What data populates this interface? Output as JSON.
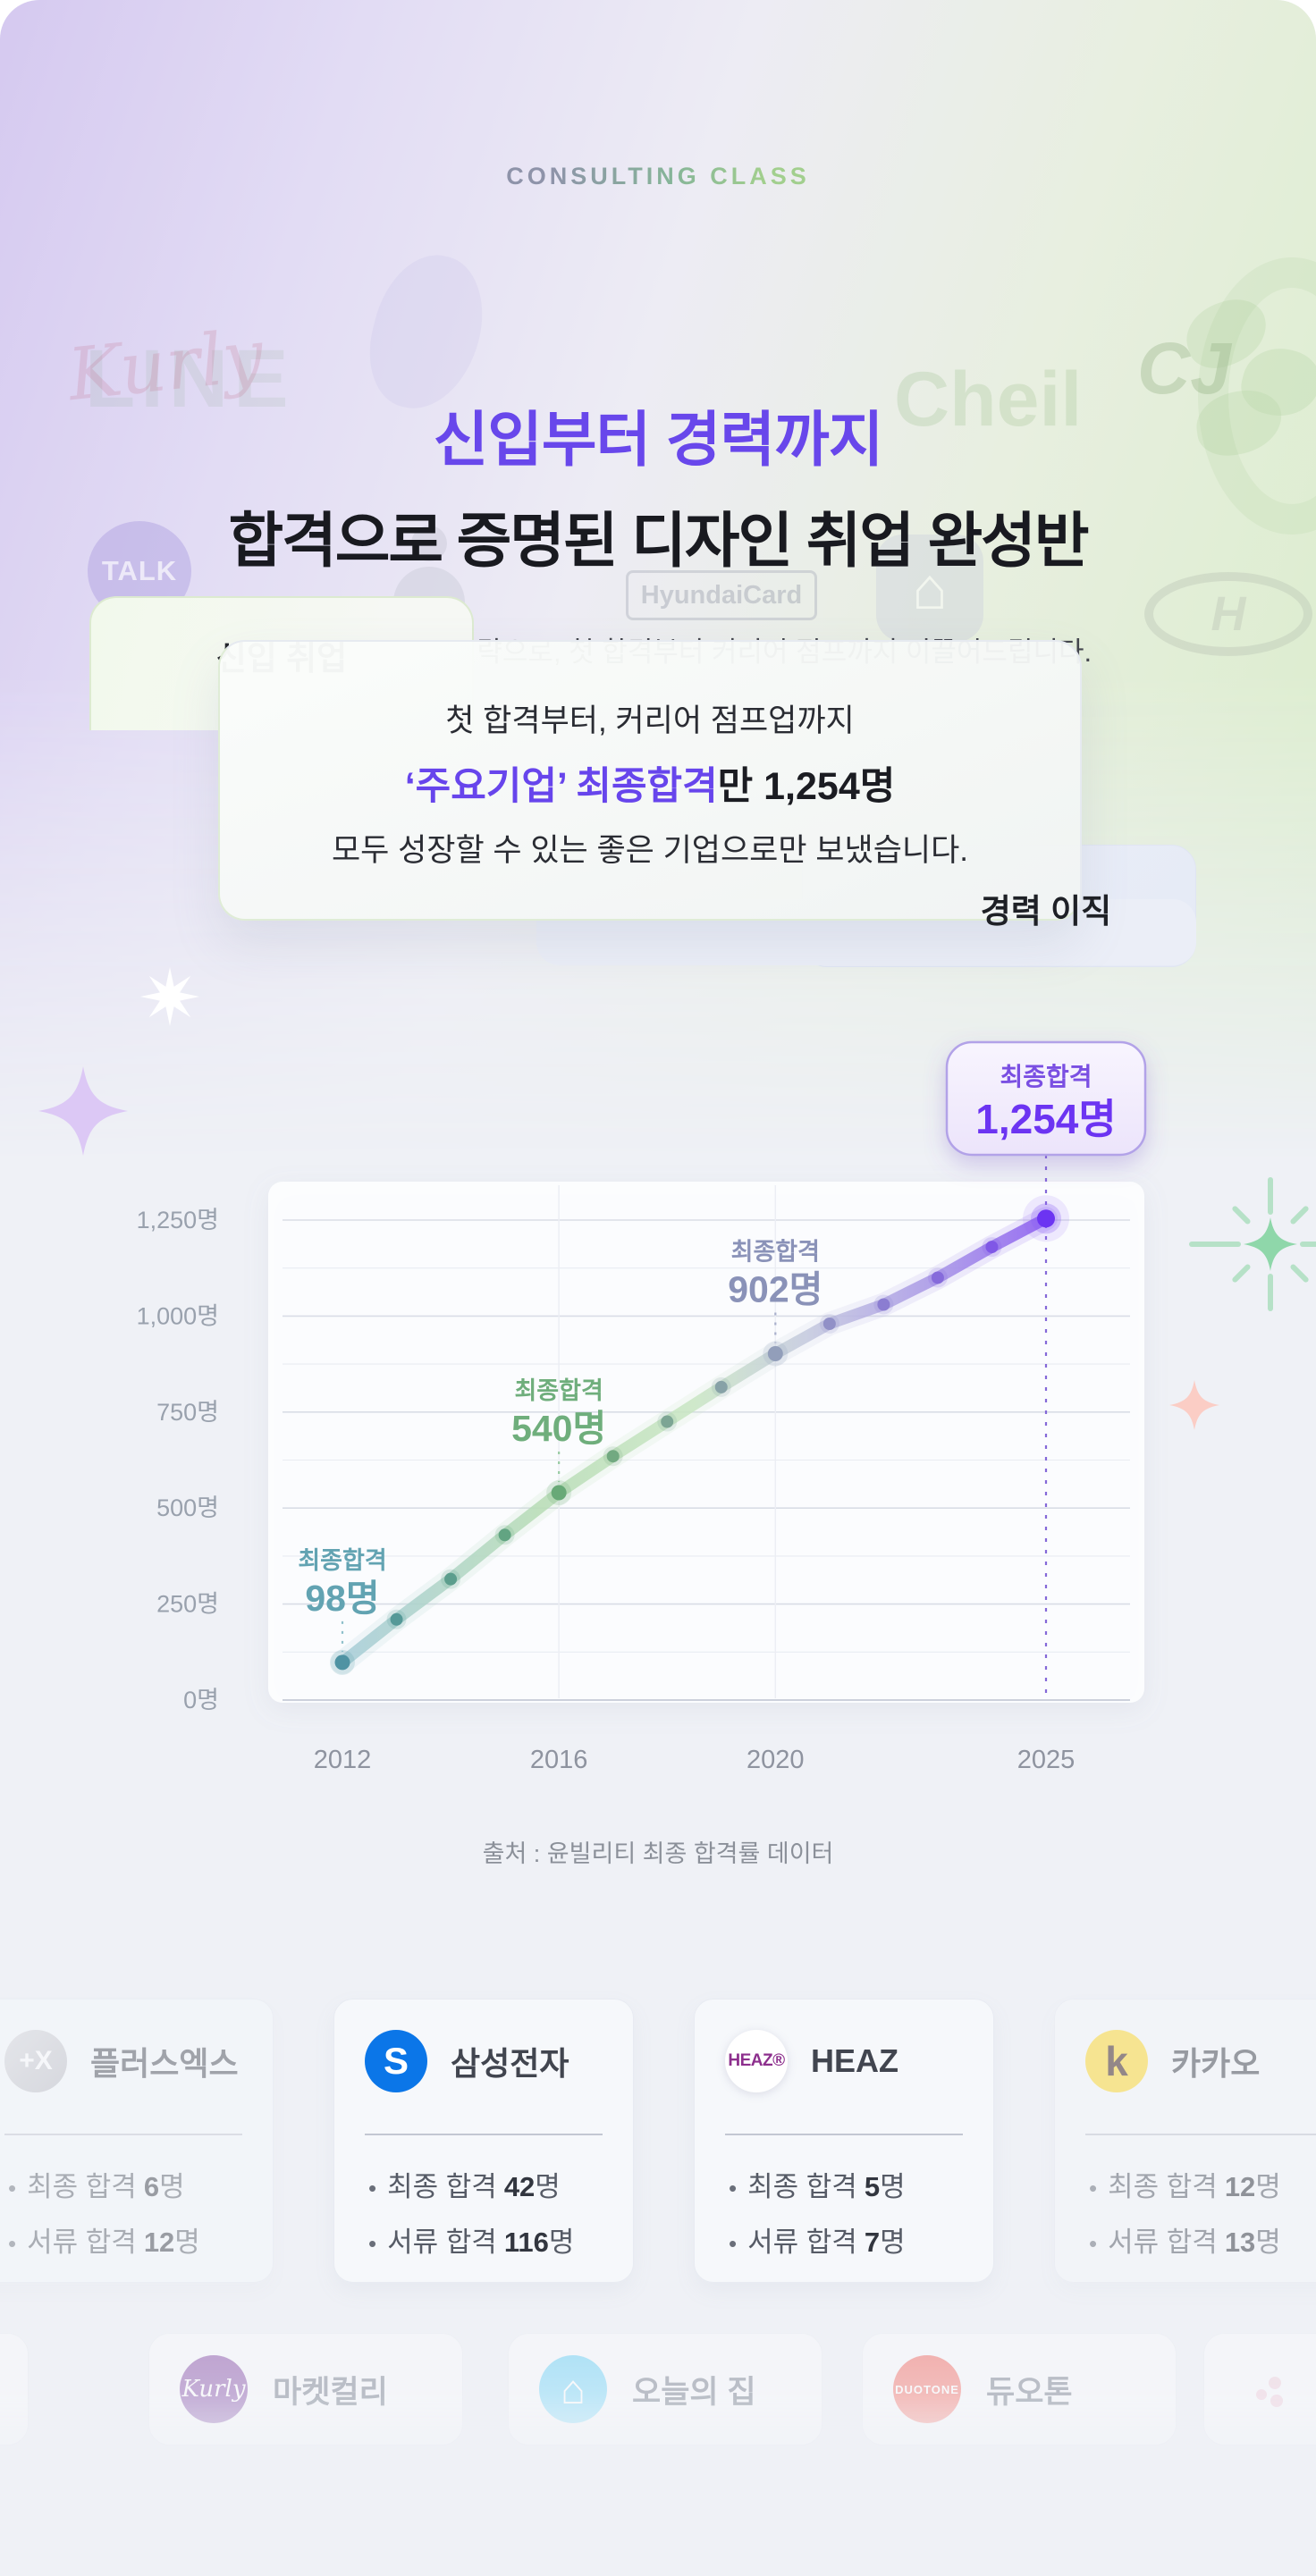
{
  "hero": {
    "badge": "CONSULTING CLASS",
    "title_line1": "신입부터 경력까지",
    "title_line2": "합격으로 증명된 디자인 취업 완성반",
    "subtitle": "당신의 상황에 맞춘 전략으로, 첫 합격부터 커리어 점프까지 이끌어드립니다."
  },
  "hero_card": {
    "tab_new": "신입 취업",
    "tab_career": "경력 이직",
    "line1": "첫 합격부터, 커리어 점프업까지",
    "line2_highlight": "‘주요기업’ 최종합격",
    "line2_rest": "만 1,254명",
    "line3": "모두 성장할 수 있는 좋은 기업으로만 보냈습니다."
  },
  "chart_data": {
    "type": "line",
    "x": [
      2012,
      2013,
      2014,
      2015,
      2016,
      2017,
      2018,
      2019,
      2020,
      2021,
      2022,
      2023,
      2024,
      2025
    ],
    "values": [
      98,
      210,
      315,
      430,
      540,
      635,
      725,
      815,
      902,
      980,
      1030,
      1100,
      1180,
      1254
    ],
    "ylabel": "명",
    "ylim": [
      0,
      1350
    ],
    "grid": true,
    "y_ticks": [
      0,
      250,
      500,
      750,
      1000,
      1250
    ],
    "y_tick_labels": [
      "0명",
      "250명",
      "500명",
      "750명",
      "1,000명",
      "1,250명"
    ],
    "minor_grid_step": 125,
    "x_tick_points": [
      {
        "index": 0,
        "label": "2012"
      },
      {
        "index": 4,
        "label": "2016"
      },
      {
        "index": 8,
        "label": "2020"
      },
      {
        "index": 13,
        "label": "2025"
      }
    ],
    "annotations": [
      {
        "index": 0,
        "label": "최종합격",
        "value_label": "98명",
        "color": "#62a3b2",
        "dash_color": "#8fc0cb"
      },
      {
        "index": 4,
        "label": "최종합격",
        "value_label": "540명",
        "color": "#6fae7c",
        "dash_color": "#99cba3"
      },
      {
        "index": 8,
        "label": "최종합격",
        "value_label": "902명",
        "color": "#8a92b8",
        "dash_color": "#a9b0cc"
      }
    ],
    "tooltip": {
      "index": 13,
      "label": "최종합격",
      "value_label": "1,254명",
      "label_color": "#7a4fe2",
      "value_color": "#6c34f2",
      "border_color": "#b2a2e8",
      "bg": "#f5f1fd",
      "dash_color": "#8468d8"
    },
    "line_gradient": [
      {
        "offset": 0,
        "color": "#a6ccd8"
      },
      {
        "offset": 0.28,
        "color": "#b7dcb5"
      },
      {
        "offset": 0.5,
        "color": "#c9e6c3"
      },
      {
        "offset": 0.66,
        "color": "#c4c9de"
      },
      {
        "offset": 0.84,
        "color": "#a795e6"
      },
      {
        "offset": 1,
        "color": "#8a5cf0"
      }
    ],
    "dot_colors": [
      {
        "t": 0,
        "color": "#4f93a3"
      },
      {
        "t": 0.33,
        "color": "#6aab74"
      },
      {
        "t": 0.64,
        "color": "#959dc0"
      },
      {
        "t": 1,
        "color": "#7a45f0"
      }
    ],
    "source": "출처 : 윤빌리티 최종 합격률 데이터"
  },
  "result_cards": [
    {
      "name": "플러스엑스",
      "logo_text": "+X",
      "logo_color": "#c9cad1",
      "logo_style": "background:linear-gradient(135deg,#d8d9dd,#b9bac1);color:#ffffff;font-size:30px;font-weight:800;",
      "stats": [
        {
          "label": "최종 합격",
          "num": "6",
          "unit": "명"
        },
        {
          "label": "서류 합격",
          "num": "12",
          "unit": "명"
        }
      ]
    },
    {
      "name": "삼성전자",
      "logo_text": "S",
      "logo_color": "#0b76e8",
      "logo_style": "background:#0b76e8;color:#ffffff;font-size:42px;font-weight:800;",
      "stats": [
        {
          "label": "최종 합격",
          "num": "42",
          "unit": "명"
        },
        {
          "label": "서류 합격",
          "num": "116",
          "unit": "명"
        }
      ]
    },
    {
      "name": "HEAZ",
      "logo_text": "HEAZ®",
      "logo_color": "#8d2f8d",
      "logo_style": "background:#ffffff;color:#8d2f8d;font-size:19px;font-weight:800;letter-spacing:-0.5px;box-shadow:0 2px 10px rgba(140,140,170,.25);",
      "stats": [
        {
          "label": "최종 합격",
          "num": "5",
          "unit": "명"
        },
        {
          "label": "서류 합격",
          "num": "7",
          "unit": "명"
        }
      ]
    },
    {
      "name": "카카오",
      "logo_text": "k",
      "logo_color": "#fdd92e",
      "logo_style": "background:#fdd92e;color:#39201d;font-size:46px;font-weight:800;",
      "stats": [
        {
          "label": "최종 합격",
          "num": "12",
          "unit": "명"
        },
        {
          "label": "서류 합격",
          "num": "13",
          "unit": "명"
        }
      ]
    }
  ],
  "bottom_logos": [
    {
      "name": "마켓컬리",
      "logo_text": "Kurly",
      "logo_style": "background:linear-gradient(180deg,#9a68b4,#a987c4);color:#ffffff;font-size:26px;font-style:italic;font-family:'DejaVu Serif',serif;"
    },
    {
      "name": "오늘의 집",
      "logo_text": "⌂",
      "logo_style": "background:linear-gradient(180deg,#7ed7f7,#a9e5fa);color:#ffffff;font-size:46px;"
    },
    {
      "name": "듀오톤",
      "logo_text": "DUOTONE",
      "logo_style": "background:linear-gradient(180deg,#f47f78,#f8a39d);color:#ffffff;font-size:13px;font-weight:800;letter-spacing:1px;"
    }
  ],
  "watermarks": {
    "line": "LINE",
    "cheil": "Cheil",
    "kurly": "Kurly",
    "cj": "CJ",
    "talk": "TALK",
    "hyundai_card": "HyundaiCard",
    "hyundai": "H",
    "house": "⌂"
  },
  "colors": {
    "accent_purple": "#6847eb",
    "title_dark": "#191a20",
    "teal": "#62a3b2",
    "green": "#6fae7c",
    "slate": "#8a92b8",
    "tooltip_purple": "#6c34f2",
    "samsung_blue": "#0b76e8",
    "kakao_yellow": "#fdd92e"
  }
}
